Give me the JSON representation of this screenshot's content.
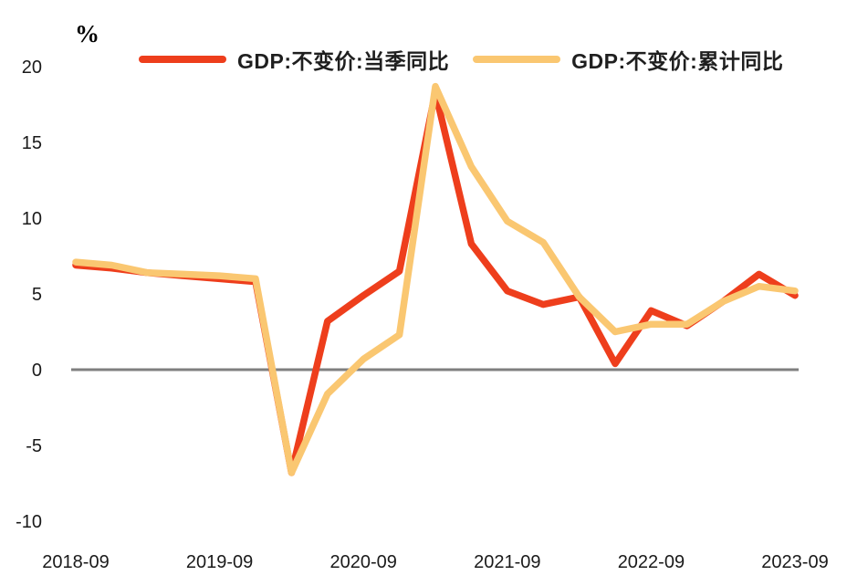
{
  "chart_data": {
    "type": "line",
    "title": "",
    "ylabel": "%",
    "xlabel": "",
    "ylim": [
      -10,
      20
    ],
    "y_ticks": [
      20,
      15,
      10,
      5,
      0,
      -5,
      -10
    ],
    "x_tick_labels": [
      "2018-09",
      "2019-09",
      "2020-09",
      "2021-09",
      "2022-09",
      "2023-09"
    ],
    "grid": "off",
    "legend_position": "top",
    "baseline_value": 0,
    "axis_color": "#7f7f7f",
    "tick_text_color": "#1a1a1a",
    "categories": [
      "2018-09",
      "2018-12",
      "2019-03",
      "2019-06",
      "2019-09",
      "2019-12",
      "2020-03",
      "2020-06",
      "2020-09",
      "2020-12",
      "2021-03",
      "2021-06",
      "2021-09",
      "2021-12",
      "2022-03",
      "2022-06",
      "2022-09",
      "2022-12",
      "2023-03",
      "2023-06",
      "2023-09"
    ],
    "series": [
      {
        "name": "GDP:不变价:当季同比",
        "color": "#ee3e1c",
        "values": [
          6.9,
          6.7,
          6.4,
          6.2,
          6.0,
          5.8,
          -6.8,
          3.2,
          4.9,
          6.5,
          18.3,
          8.3,
          5.2,
          4.3,
          4.8,
          0.4,
          3.9,
          2.9,
          4.5,
          6.3,
          4.9
        ]
      },
      {
        "name": "GDP:不变价:累计同比",
        "color": "#fac771",
        "values": [
          7.1,
          6.9,
          6.4,
          6.3,
          6.2,
          6.0,
          -6.8,
          -1.6,
          0.7,
          2.3,
          18.7,
          13.4,
          9.8,
          8.4,
          4.8,
          2.5,
          3.0,
          3.0,
          4.5,
          5.5,
          5.2
        ]
      }
    ]
  }
}
